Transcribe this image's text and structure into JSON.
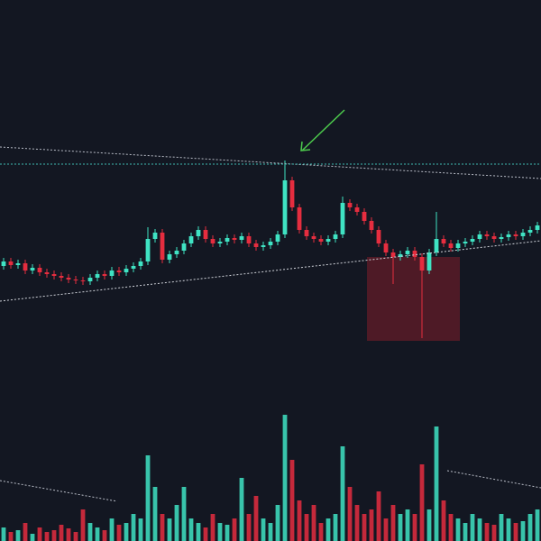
{
  "chart_data": {
    "type": "candlestick",
    "up_color": "#3fe3c3",
    "down_color": "#e52d3f",
    "ylim": [
      0,
      600
    ],
    "volume_ylim": [
      0,
      150
    ],
    "open": [
      305,
      310,
      306,
      308,
      300,
      303,
      298,
      296,
      294,
      292,
      290,
      289,
      288,
      292,
      296,
      294,
      300,
      298,
      302,
      305,
      310,
      335,
      342,
      312,
      318,
      322,
      330,
      338,
      345,
      335,
      330,
      332,
      336,
      334,
      338,
      330,
      326,
      328,
      332,
      340,
      400,
      370,
      345,
      338,
      335,
      332,
      335,
      340,
      375,
      370,
      365,
      355,
      345,
      330,
      320,
      315,
      318,
      322,
      315,
      300,
      320,
      335,
      330,
      325,
      330,
      332,
      335,
      340,
      338,
      335,
      337,
      340,
      338,
      342,
      345
    ],
    "high": [
      314,
      314,
      312,
      312,
      307,
      307,
      302,
      300,
      298,
      296,
      294,
      293,
      296,
      300,
      300,
      304,
      304,
      306,
      309,
      314,
      348,
      346,
      346,
      322,
      326,
      334,
      342,
      349,
      349,
      339,
      336,
      340,
      340,
      342,
      342,
      334,
      332,
      336,
      344,
      422,
      404,
      374,
      349,
      342,
      339,
      339,
      344,
      382,
      379,
      374,
      369,
      359,
      349,
      334,
      324,
      322,
      326,
      326,
      319,
      324,
      365,
      339,
      334,
      334,
      336,
      339,
      344,
      344,
      342,
      341,
      344,
      344,
      346,
      349,
      354
    ],
    "low": [
      301,
      302,
      302,
      296,
      296,
      294,
      292,
      290,
      288,
      286,
      285,
      284,
      284,
      288,
      290,
      290,
      294,
      294,
      298,
      301,
      306,
      331,
      308,
      308,
      314,
      318,
      326,
      334,
      331,
      326,
      326,
      328,
      330,
      330,
      326,
      322,
      322,
      324,
      328,
      336,
      366,
      341,
      334,
      331,
      328,
      328,
      331,
      336,
      366,
      361,
      351,
      341,
      326,
      316,
      285,
      311,
      314,
      311,
      225,
      296,
      316,
      326,
      321,
      321,
      326,
      328,
      331,
      334,
      331,
      331,
      333,
      334,
      334,
      338,
      341
    ],
    "close": [
      310,
      306,
      308,
      300,
      303,
      298,
      296,
      294,
      292,
      290,
      289,
      288,
      292,
      296,
      294,
      300,
      298,
      302,
      305,
      310,
      335,
      342,
      312,
      318,
      322,
      330,
      338,
      345,
      335,
      330,
      332,
      336,
      334,
      338,
      330,
      326,
      328,
      332,
      340,
      400,
      370,
      345,
      338,
      335,
      332,
      335,
      340,
      375,
      370,
      365,
      355,
      345,
      330,
      320,
      315,
      318,
      322,
      315,
      300,
      320,
      335,
      330,
      325,
      330,
      332,
      335,
      340,
      338,
      335,
      337,
      340,
      338,
      342,
      345,
      350
    ],
    "volume": [
      15,
      10,
      12,
      20,
      8,
      15,
      10,
      12,
      18,
      14,
      10,
      35,
      20,
      15,
      12,
      25,
      18,
      20,
      30,
      25,
      95,
      60,
      30,
      25,
      40,
      60,
      25,
      20,
      15,
      30,
      20,
      18,
      25,
      70,
      30,
      50,
      25,
      20,
      40,
      140,
      90,
      45,
      30,
      40,
      20,
      25,
      30,
      105,
      60,
      40,
      30,
      35,
      55,
      25,
      40,
      30,
      35,
      30,
      85,
      35,
      127,
      45,
      30,
      25,
      20,
      30,
      25,
      20,
      18,
      30,
      25,
      20,
      22,
      30,
      35
    ]
  }
}
